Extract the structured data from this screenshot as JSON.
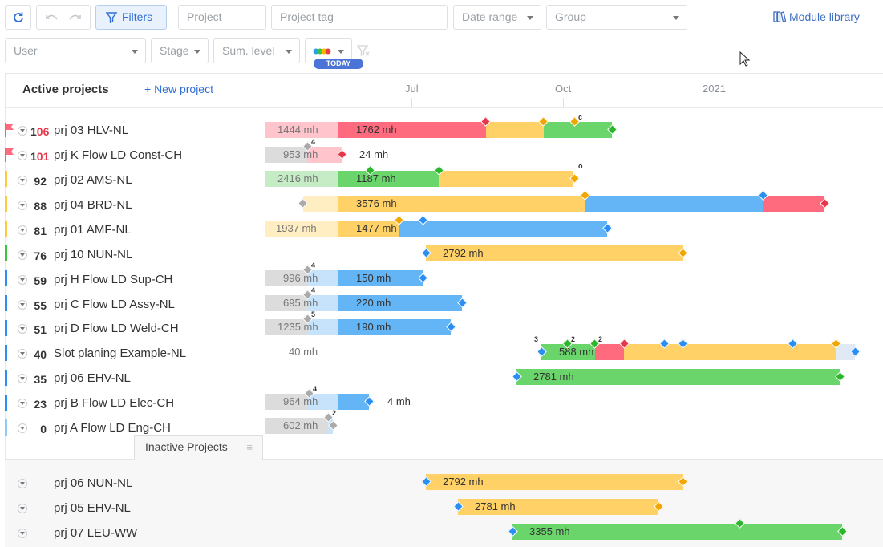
{
  "toolbar": {
    "refresh_icon": "refresh-icon",
    "undo_icon": "undo-icon",
    "redo_icon": "redo-icon",
    "filters_label": "Filters",
    "project_placeholder": "Project",
    "project_tag_placeholder": "Project tag",
    "date_range_label": "Date range",
    "group_label": "Group",
    "module_library_label": "Module library",
    "user_label": "User",
    "stage_label": "Stage",
    "sum_level_label": "Sum. level"
  },
  "timeline": {
    "today_label": "TODAY",
    "months": [
      "Jul",
      "Oct",
      "2021"
    ]
  },
  "panel": {
    "title": "Active projects",
    "new_project_label": "+ New project",
    "inactive_tab": "Inactive Projects"
  },
  "colors": {
    "red": "#ff6b7e",
    "yellow": "#ffd166",
    "green": "#6ad56a",
    "blue": "#64b5f6",
    "accent": "#2f6fd6"
  },
  "active_projects": [
    {
      "score_prefix": "1",
      "score_red": "06",
      "name": "prj 03 HLV-NL",
      "status": "red",
      "flag": true,
      "past_mh": "1444 mh",
      "future_mh": "1762 mh"
    },
    {
      "score_prefix": "1",
      "score_red": "01",
      "name": "prj K Flow LD Const-CH",
      "status": "red",
      "flag": true,
      "past_mh": "953 mh",
      "future_mh": "24 mh",
      "badge": "4"
    },
    {
      "score": "92",
      "name": "prj 02 AMS-NL",
      "status": "yellow",
      "past_mh": "2416 mh",
      "future_mh": "1187 mh",
      "badge": "o"
    },
    {
      "score": "88",
      "name": "prj 04 BRD-NL",
      "status": "yellow",
      "future_mh": "3576 mh"
    },
    {
      "score": "81",
      "name": "prj 01 AMF-NL",
      "status": "yellow",
      "past_mh": "1937 mh",
      "future_mh": "1477 mh"
    },
    {
      "score": "76",
      "name": "prj 10 NUN-NL",
      "status": "green",
      "future_mh": "2792 mh"
    },
    {
      "score": "59",
      "name": "prj H Flow LD Sup-CH",
      "status": "blue",
      "past_mh": "996 mh",
      "future_mh": "150 mh",
      "badge": "4"
    },
    {
      "score": "55",
      "name": "prj C Flow LD Assy-NL",
      "status": "blue",
      "past_mh": "695 mh",
      "future_mh": "220 mh",
      "badge": "4"
    },
    {
      "score": "51",
      "name": "prj D Flow LD Weld-CH",
      "status": "blue",
      "past_mh": "1235 mh",
      "future_mh": "190 mh",
      "badge": "5"
    },
    {
      "score": "40",
      "name": "Slot planing Example-NL",
      "status": "blue",
      "past_mh": "40 mh",
      "future_mh": "588 mh",
      "badges": [
        "3",
        "2",
        "2"
      ]
    },
    {
      "score": "35",
      "name": "prj 06 EHV-NL",
      "status": "blue",
      "future_mh": "2781 mh"
    },
    {
      "score": "23",
      "name": "prj B Flow LD Elec-CH",
      "status": "blue",
      "past_mh": "964 mh",
      "future_mh": "4 mh",
      "badge": "4"
    },
    {
      "score": "0",
      "name": "prj A Flow LD Eng-CH",
      "status": "lightblue",
      "past_mh": "602 mh",
      "badge": "2"
    }
  ],
  "inactive_projects": [
    {
      "name": "prj 06 NUN-NL",
      "future_mh": "2792 mh"
    },
    {
      "name": "prj 05 EHV-NL",
      "future_mh": "2781 mh"
    },
    {
      "name": "prj 07 LEU-WW",
      "future_mh": "3355 mh"
    }
  ]
}
